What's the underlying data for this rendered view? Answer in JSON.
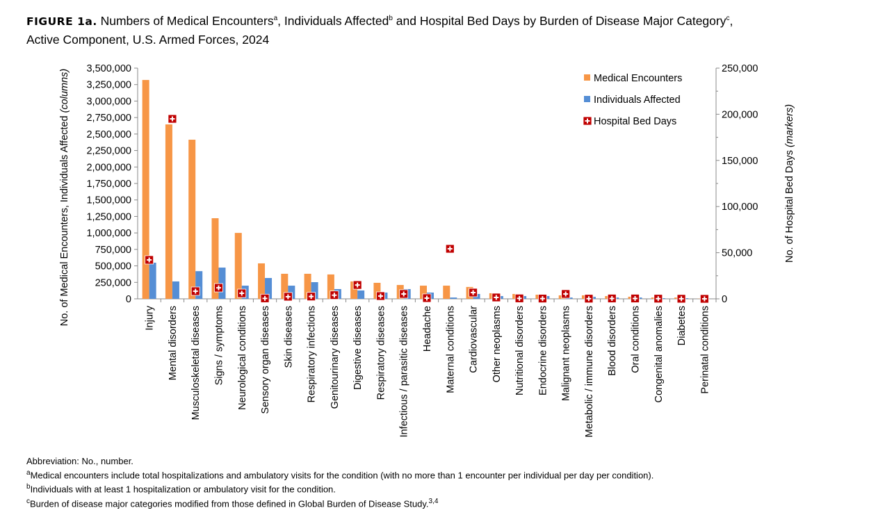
{
  "title": {
    "figure_label": "FIGURE 1a.",
    "text_part1": " Numbers of Medical Encounters",
    "sup_a": "a",
    "text_part2": ", Individuals Affected",
    "sup_b": "b",
    "text_part3": " and Hospital Bed Days by Burden of Disease Major Category",
    "sup_c": "c",
    "text_part4": ",",
    "line2": "Active Component, U.S. Armed Forces, 2024"
  },
  "chart_data": {
    "type": "bar",
    "categories": [
      "Injury",
      "Mental disorders",
      "Musculoskeletal diseases",
      "Signs / symptoms",
      "Neurological conditions",
      "Sensory organ diseases",
      "Skin diseases",
      "Respiratory infections",
      "Genitourinary diseases",
      "Digestive diseases",
      "Respiratory diseases",
      "Infectious / parasitic diseases",
      "Headache",
      "Maternal conditions",
      "Cardiovascular",
      "Other neoplasms",
      "Nutritional disorders",
      "Endocrine disorders",
      "Malignant neoplasms",
      "Metabolic / immune disorders",
      "Blood disorders",
      "Oral conditions",
      "Congenital anomalies",
      "Diabetes",
      "Perinatal conditions"
    ],
    "series": [
      {
        "name": "Medical Encounters",
        "axis": "left",
        "kind": "bar",
        "color": "#f79646",
        "values": [
          3320000,
          2646000,
          2414000,
          1223000,
          1000000,
          538000,
          380000,
          380000,
          370000,
          264000,
          243000,
          210000,
          200000,
          200000,
          180000,
          85000,
          74000,
          63000,
          53000,
          53000,
          42000,
          32000,
          20000,
          20000,
          3000
        ]
      },
      {
        "name": "Individuals Affected",
        "axis": "left",
        "kind": "bar",
        "color": "#558ed5",
        "values": [
          548000,
          264000,
          420000,
          474000,
          200000,
          316000,
          200000,
          253000,
          148000,
          127000,
          95000,
          148000,
          95000,
          20000,
          74000,
          42000,
          42000,
          42000,
          20000,
          30000,
          20000,
          20000,
          10000,
          10000,
          1000
        ]
      },
      {
        "name": "Hospital Bed Days",
        "axis": "right",
        "kind": "marker",
        "color": "#c00000",
        "values": [
          42200,
          195000,
          8300,
          12000,
          6000,
          500,
          2300,
          2500,
          4000,
          15000,
          3000,
          5300,
          800,
          54200,
          6800,
          1500,
          500,
          300,
          5300,
          200,
          400,
          400,
          200,
          100,
          0
        ]
      }
    ],
    "y_left": {
      "label": "No. of Medical Encounters, Individuals Affected",
      "label_italic": "(columns)",
      "range": [
        0,
        3500000
      ],
      "ticks": [
        "0",
        "250,000",
        "500,000",
        "750,000",
        "1,000,000",
        "1,250,000",
        "1,500,000",
        "1,750,000",
        "2,000,000",
        "2,250,000",
        "2,500,000",
        "2,750,000",
        "3,000,000",
        "3,250,000",
        "3,500,000"
      ]
    },
    "y_right": {
      "label": "No. of  Hospital Bed Days",
      "label_italic": "(markers)",
      "range": [
        0,
        250000
      ],
      "ticks": [
        "0",
        "50,000",
        "100,000",
        "150,000",
        "200,000",
        "250,000"
      ]
    },
    "legend_placement": "top-right",
    "grid": false
  },
  "notes": {
    "abbrev": "Abbreviation: No., number.",
    "a_mark": "a",
    "a": "Medical encounters include total hospitalizations and ambulatory visits for the condition (with no more than 1 encounter per individual per day per condition).",
    "b_mark": "b",
    "b": "Individuals with at least 1 hospitalization or ambulatory visit for the condition.",
    "c_mark": "c",
    "c": "Burden of disease major categories modified from those defined in Global Burden of Disease Study.",
    "c_ref": "3,4"
  }
}
